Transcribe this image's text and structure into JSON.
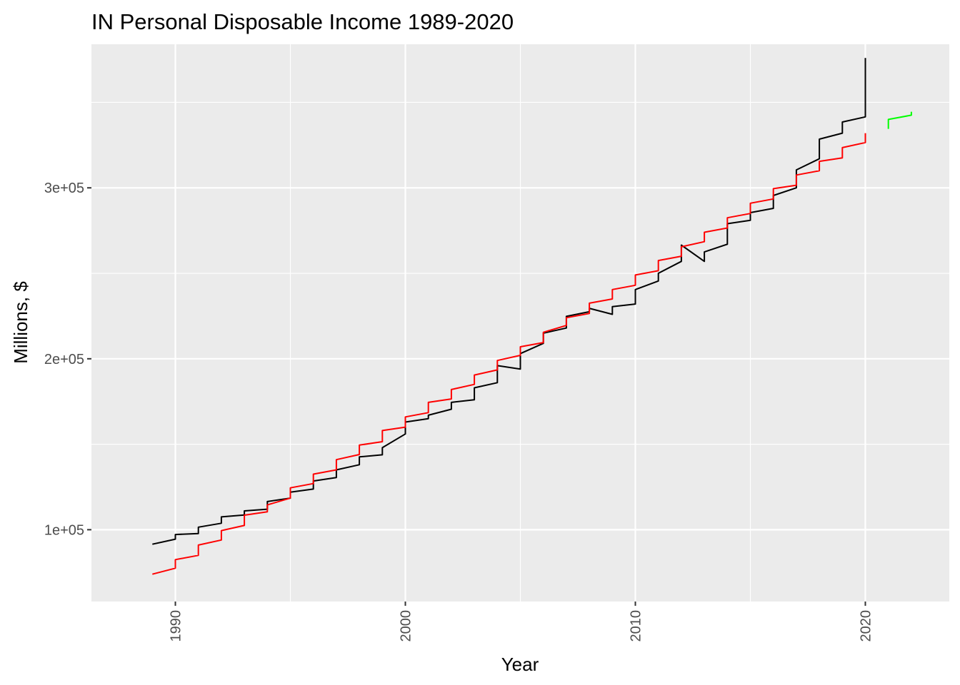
{
  "chart_data": {
    "type": "line",
    "title": "IN Personal Disposable Income 1989-2020",
    "xlabel": "Year",
    "ylabel": "Millions, $",
    "xlim": [
      1986.35,
      2023.65
    ],
    "ylim": [
      58000,
      384000
    ],
    "x_ticks": [
      1990,
      2000,
      2010,
      2020
    ],
    "x_tick_labels": [
      "1990",
      "2000",
      "2010",
      "2020"
    ],
    "y_ticks": [
      100000,
      200000,
      300000
    ],
    "y_tick_labels": [
      "1e+05",
      "2e+05",
      "3e+05"
    ],
    "x_minor": [
      1995,
      2005,
      2015
    ],
    "y_minor": [
      150000,
      250000,
      350000
    ],
    "grid": true,
    "legend": "none",
    "series": [
      {
        "color": "#000000",
        "points": [
          [
            1989.0,
            91500
          ],
          [
            1990.0,
            94500
          ],
          [
            1990.0,
            97200
          ],
          [
            1991.0,
            97800
          ],
          [
            1991.0,
            101500
          ],
          [
            1992.0,
            103800
          ],
          [
            1992.0,
            107500
          ],
          [
            1993.0,
            108600
          ],
          [
            1993.0,
            111000
          ],
          [
            1994.0,
            112000
          ],
          [
            1994.0,
            116500
          ],
          [
            1995.0,
            118500
          ],
          [
            1995.0,
            122000
          ],
          [
            1996.0,
            123800
          ],
          [
            1996.0,
            128500
          ],
          [
            1997.0,
            130500
          ],
          [
            1997.0,
            135000
          ],
          [
            1998.0,
            138000
          ],
          [
            1998.0,
            142600
          ],
          [
            1999.0,
            143800
          ],
          [
            1999.0,
            148000
          ],
          [
            2000.0,
            156000
          ],
          [
            2000.0,
            163000
          ],
          [
            2001.0,
            165000
          ],
          [
            2001.0,
            167000
          ],
          [
            2002.0,
            170500
          ],
          [
            2002.0,
            174500
          ],
          [
            2003.0,
            176000
          ],
          [
            2003.0,
            183000
          ],
          [
            2004.0,
            186000
          ],
          [
            2004.0,
            196000
          ],
          [
            2005.0,
            194000
          ],
          [
            2005.0,
            203000
          ],
          [
            2006.0,
            209000
          ],
          [
            2006.0,
            215000
          ],
          [
            2007.0,
            218000
          ],
          [
            2007.0,
            224800
          ],
          [
            2008.0,
            227500
          ],
          [
            2008.0,
            229500
          ],
          [
            2009.0,
            226000
          ],
          [
            2009.0,
            230500
          ],
          [
            2010.0,
            232000
          ],
          [
            2010.0,
            240500
          ],
          [
            2011.0,
            245500
          ],
          [
            2011.0,
            250000
          ],
          [
            2012.0,
            257000
          ],
          [
            2012.0,
            266500
          ],
          [
            2013.0,
            257000
          ],
          [
            2013.0,
            262500
          ],
          [
            2014.0,
            267000
          ],
          [
            2014.0,
            279000
          ],
          [
            2015.0,
            281000
          ],
          [
            2015.0,
            285500
          ],
          [
            2016.0,
            288000
          ],
          [
            2016.0,
            295500
          ],
          [
            2017.0,
            300000
          ],
          [
            2017.0,
            310500
          ],
          [
            2018.0,
            317000
          ],
          [
            2018.0,
            328500
          ],
          [
            2019.0,
            332000
          ],
          [
            2019.0,
            338500
          ],
          [
            2020.0,
            341500
          ],
          [
            2020.0,
            376000
          ]
        ]
      },
      {
        "color": "#ff0000",
        "points": [
          [
            1989.0,
            74000
          ],
          [
            1990.0,
            77500
          ],
          [
            1990.0,
            82500
          ],
          [
            1991.0,
            85000
          ],
          [
            1991.0,
            91000
          ],
          [
            1992.0,
            94000
          ],
          [
            1992.0,
            99500
          ],
          [
            1993.0,
            102500
          ],
          [
            1993.0,
            108500
          ],
          [
            1994.0,
            110500
          ],
          [
            1994.0,
            114500
          ],
          [
            1995.0,
            118500
          ],
          [
            1995.0,
            124500
          ],
          [
            1996.0,
            127000
          ],
          [
            1996.0,
            132500
          ],
          [
            1997.0,
            135000
          ],
          [
            1997.0,
            141000
          ],
          [
            1998.0,
            144000
          ],
          [
            1998.0,
            149500
          ],
          [
            1999.0,
            151500
          ],
          [
            1999.0,
            158000
          ],
          [
            2000.0,
            160000
          ],
          [
            2000.0,
            166000
          ],
          [
            2001.0,
            168500
          ],
          [
            2001.0,
            174500
          ],
          [
            2002.0,
            176500
          ],
          [
            2002.0,
            182000
          ],
          [
            2003.0,
            185000
          ],
          [
            2003.0,
            190500
          ],
          [
            2004.0,
            193500
          ],
          [
            2004.0,
            199000
          ],
          [
            2005.0,
            202000
          ],
          [
            2005.0,
            207000
          ],
          [
            2006.0,
            209500
          ],
          [
            2006.0,
            215500
          ],
          [
            2007.0,
            219500
          ],
          [
            2007.0,
            224000
          ],
          [
            2008.0,
            226500
          ],
          [
            2008.0,
            232500
          ],
          [
            2009.0,
            235000
          ],
          [
            2009.0,
            240500
          ],
          [
            2010.0,
            243000
          ],
          [
            2010.0,
            249000
          ],
          [
            2011.0,
            251500
          ],
          [
            2011.0,
            257500
          ],
          [
            2012.0,
            260000
          ],
          [
            2012.0,
            265500
          ],
          [
            2013.0,
            268500
          ],
          [
            2013.0,
            274000
          ],
          [
            2014.0,
            276500
          ],
          [
            2014.0,
            282500
          ],
          [
            2015.0,
            285000
          ],
          [
            2015.0,
            291000
          ],
          [
            2016.0,
            293500
          ],
          [
            2016.0,
            299500
          ],
          [
            2017.0,
            301500
          ],
          [
            2017.0,
            307500
          ],
          [
            2018.0,
            310000
          ],
          [
            2018.0,
            315500
          ],
          [
            2019.0,
            317500
          ],
          [
            2019.0,
            323500
          ],
          [
            2020.0,
            326500
          ],
          [
            2020.0,
            332000
          ]
        ]
      },
      {
        "color": "#00ff00",
        "points": [
          [
            2021.0,
            334500
          ],
          [
            2021.0,
            340000
          ],
          [
            2022.0,
            342500
          ],
          [
            2022.0,
            344500
          ]
        ]
      }
    ]
  }
}
